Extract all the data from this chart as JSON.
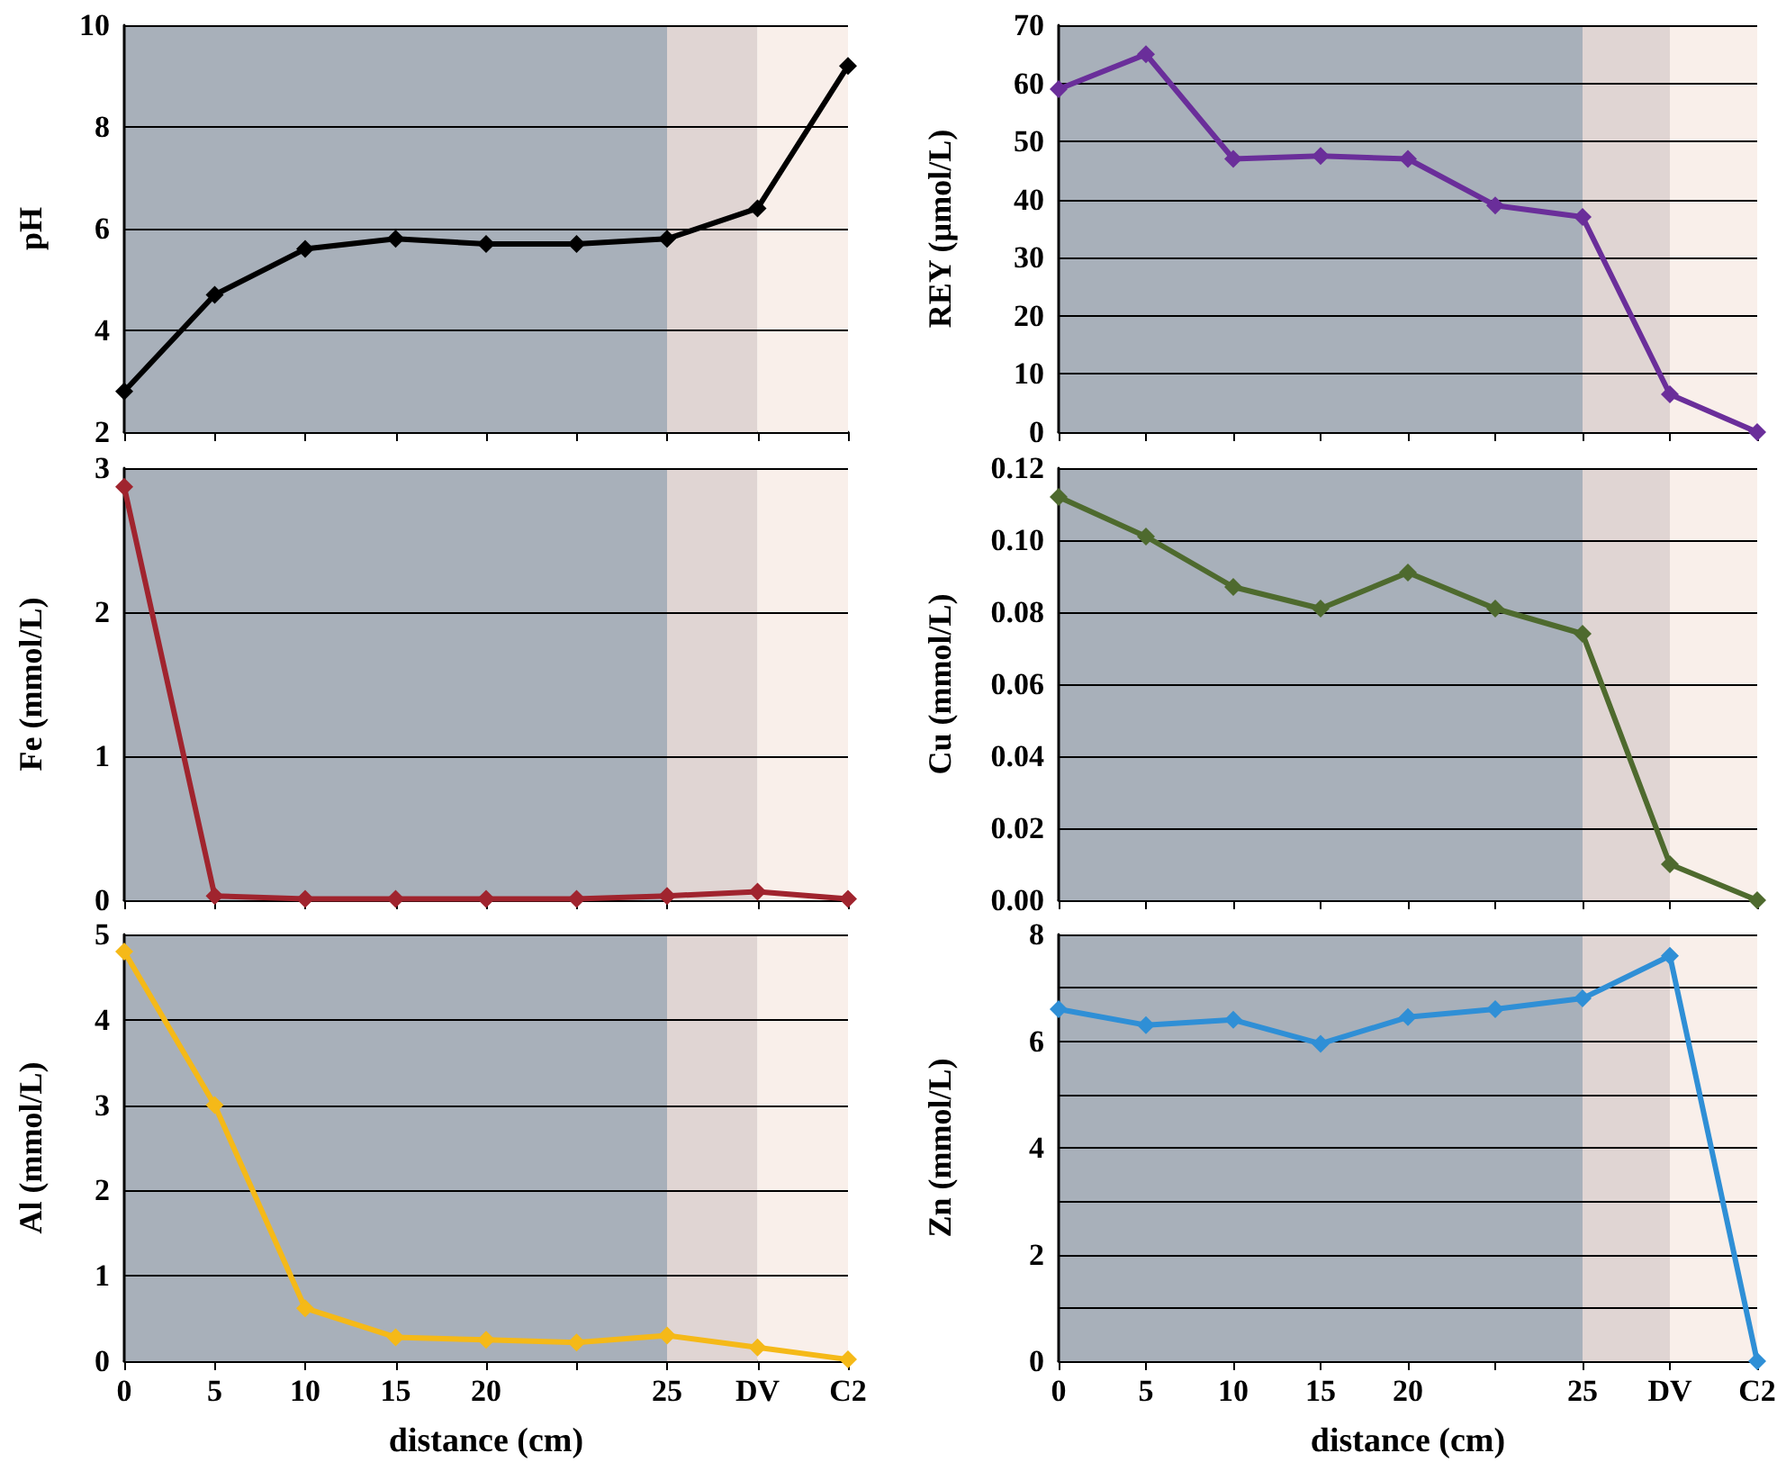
{
  "chart_data": [
    {
      "type": "line",
      "ylabel": "pH",
      "categories": [
        "0",
        "5",
        "10",
        "15",
        "20",
        null,
        "25",
        "DV",
        "C2"
      ],
      "series": [
        {
          "color": "#000000",
          "values": [
            2.8,
            4.7,
            5.6,
            5.8,
            5.7,
            5.7,
            5.8,
            6.4,
            9.2
          ]
        }
      ],
      "ylim": [
        2,
        10
      ],
      "yticks": [
        2,
        4,
        6,
        8,
        10
      ],
      "grid": "y",
      "marker": "diamond",
      "tick_labels": "y",
      "bands": [
        {
          "axis": "x",
          "from": "0",
          "to": "25",
          "color": "#a8b0ba"
        },
        {
          "axis": "x",
          "from": "25",
          "to": "DV",
          "color": "#e0d5d3"
        },
        {
          "axis": "x",
          "from": "DV",
          "to": "C2",
          "color": "#f9efea"
        }
      ]
    },
    {
      "type": "line",
      "ylabel": "REY (µmol/L)",
      "categories": [
        "0",
        "5",
        "10",
        "15",
        "20",
        null,
        "25",
        "DV",
        "C2"
      ],
      "series": [
        {
          "color": "#6a2e9a",
          "values": [
            59,
            65,
            47,
            47.5,
            47,
            39,
            37,
            6.5,
            0
          ]
        }
      ],
      "ylim": [
        0,
        70
      ],
      "yticks": [
        0,
        10,
        20,
        30,
        40,
        50,
        60,
        70
      ],
      "grid": "y",
      "marker": "diamond",
      "tick_labels": "y",
      "bands": [
        {
          "axis": "x",
          "from": "0",
          "to": "25",
          "color": "#a8b0ba"
        },
        {
          "axis": "x",
          "from": "25",
          "to": "DV",
          "color": "#e0d5d3"
        },
        {
          "axis": "x",
          "from": "DV",
          "to": "C2",
          "color": "#f9efea"
        }
      ]
    },
    {
      "type": "line",
      "ylabel": "Fe (mmol/L)",
      "categories": [
        "0",
        "5",
        "10",
        "15",
        "20",
        null,
        "25",
        "DV",
        "C2"
      ],
      "series": [
        {
          "color": "#a0242e",
          "values": [
            2.87,
            0.03,
            0.01,
            0.01,
            0.01,
            0.01,
            0.03,
            0.06,
            0.01
          ]
        }
      ],
      "ylim": [
        0,
        3
      ],
      "yticks": [
        0,
        1,
        2,
        3
      ],
      "grid": "y",
      "marker": "diamond",
      "tick_labels": "y",
      "bands": [
        {
          "axis": "x",
          "from": "0",
          "to": "25",
          "color": "#a8b0ba"
        },
        {
          "axis": "x",
          "from": "25",
          "to": "DV",
          "color": "#e0d5d3"
        },
        {
          "axis": "x",
          "from": "DV",
          "to": "C2",
          "color": "#f9efea"
        }
      ]
    },
    {
      "type": "line",
      "ylabel": "Cu (mmol/L)",
      "categories": [
        "0",
        "5",
        "10",
        "15",
        "20",
        null,
        "25",
        "DV",
        "C2"
      ],
      "series": [
        {
          "color": "#4e6a2e",
          "values": [
            0.112,
            0.101,
            0.087,
            0.081,
            0.091,
            0.081,
            0.074,
            0.01,
            0.0
          ]
        }
      ],
      "ylim": [
        0,
        0.12
      ],
      "yticks": [
        {
          "value": 0,
          "label": "0.00"
        },
        {
          "value": 0.02,
          "label": "0.02"
        },
        {
          "value": 0.04,
          "label": "0.04"
        },
        {
          "value": 0.06,
          "label": "0.06"
        },
        {
          "value": 0.08,
          "label": "0.08"
        },
        {
          "value": 0.1,
          "label": "0.10"
        },
        {
          "value": 0.12,
          "label": "0.12"
        }
      ],
      "grid": "y",
      "marker": "diamond",
      "tick_labels": "y",
      "bands": [
        {
          "axis": "x",
          "from": "0",
          "to": "25",
          "color": "#a8b0ba"
        },
        {
          "axis": "x",
          "from": "25",
          "to": "DV",
          "color": "#e0d5d3"
        },
        {
          "axis": "x",
          "from": "DV",
          "to": "C2",
          "color": "#f9efea"
        }
      ]
    },
    {
      "type": "line",
      "ylabel": "Al (mmol/L)",
      "xlabel": "distance (cm)",
      "categories": [
        "0",
        "5",
        "10",
        "15",
        "20",
        null,
        "25",
        "DV",
        "C2"
      ],
      "series": [
        {
          "color": "#f5b918",
          "values": [
            4.8,
            3.0,
            0.62,
            0.28,
            0.25,
            0.22,
            0.3,
            0.16,
            0.02
          ]
        }
      ],
      "ylim": [
        0,
        5
      ],
      "yticks": [
        0,
        1,
        2,
        3,
        4,
        5
      ],
      "grid": "y",
      "marker": "diamond",
      "bands": [
        {
          "axis": "x",
          "from": "0",
          "to": "25",
          "color": "#a8b0ba"
        },
        {
          "axis": "x",
          "from": "25",
          "to": "DV",
          "color": "#e0d5d3"
        },
        {
          "axis": "x",
          "from": "DV",
          "to": "C2",
          "color": "#f9efea"
        }
      ]
    },
    {
      "type": "line",
      "ylabel": "Zn (mmol/L)",
      "xlabel": "distance (cm)",
      "categories": [
        "0",
        "5",
        "10",
        "15",
        "20",
        null,
        "25",
        "DV",
        "C2"
      ],
      "series": [
        {
          "color": "#2f8fd6",
          "values": [
            6.6,
            6.3,
            6.4,
            5.95,
            6.45,
            6.6,
            6.8,
            7.6,
            0
          ]
        }
      ],
      "ylim": [
        0,
        8
      ],
      "yticks": [
        0,
        {
          "value": 1,
          "label": null
        },
        2,
        {
          "value": 3,
          "label": null
        },
        4,
        {
          "value": 5,
          "label": null
        },
        6,
        {
          "value": 7,
          "label": null
        },
        8
      ],
      "grid": "y",
      "marker": "diamond",
      "bands": [
        {
          "axis": "x",
          "from": "0",
          "to": "25",
          "color": "#a8b0ba"
        },
        {
          "axis": "x",
          "from": "25",
          "to": "DV",
          "color": "#e0d5d3"
        },
        {
          "axis": "x",
          "from": "DV",
          "to": "C2",
          "color": "#f9efea"
        }
      ]
    }
  ]
}
